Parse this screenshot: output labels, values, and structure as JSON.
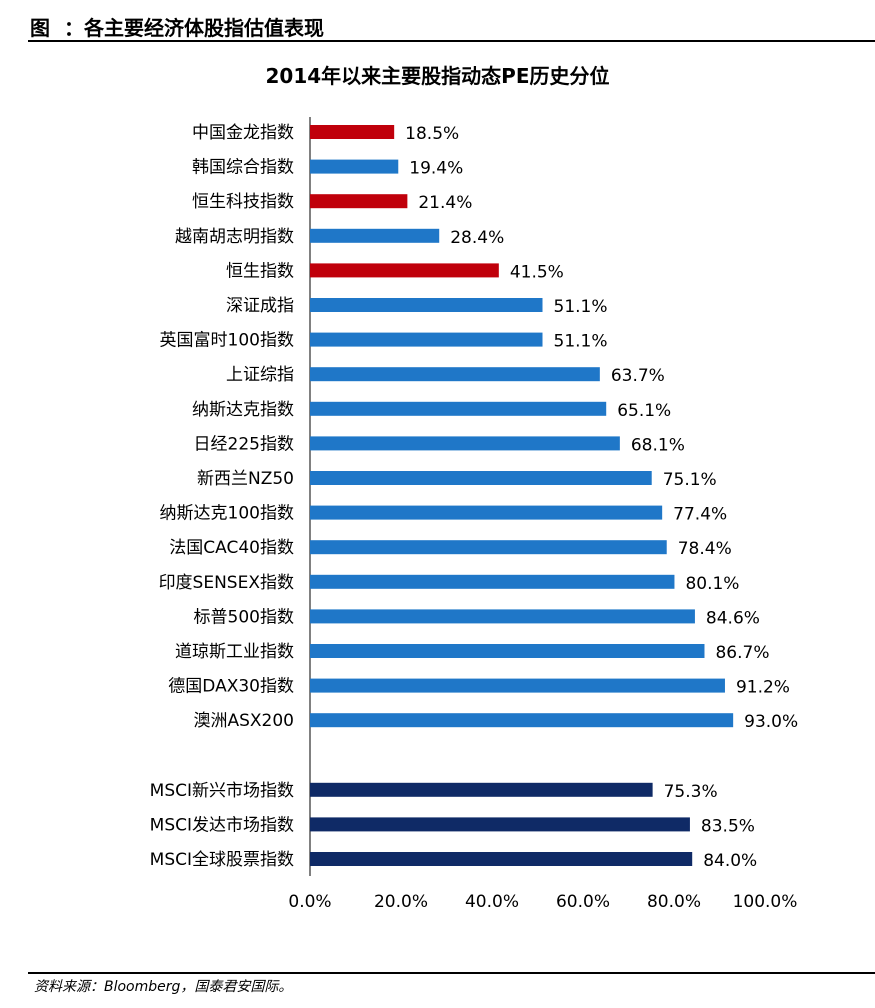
{
  "figure": {
    "label": "图",
    "caption": "：各主要经济体股指估值表现",
    "source": "资料来源：Bloomberg，国泰君安国际。"
  },
  "chart_data": {
    "type": "bar",
    "orientation": "horizontal",
    "title": "2014年以来主要股指动态PE历史分位",
    "xlabel": "",
    "ylabel": "",
    "xlim": [
      0,
      100
    ],
    "x_ticks": [
      "0.0%",
      "20.0%",
      "40.0%",
      "60.0%",
      "80.0%",
      "100.0%"
    ],
    "grid": false,
    "legend": "none",
    "categories": [
      "中国金龙指数",
      "韩国综合指数",
      "恒生科技指数",
      "越南胡志明指数",
      "恒生指数",
      "深证成指",
      "英国富时100指数",
      "上证综指",
      "纳斯达克指数",
      "日经225指数",
      "新西兰NZ50",
      "纳斯达克100指数",
      "法国CAC40指数",
      "印度SENSEX指数",
      "标普500指数",
      "道琼斯工业指数",
      "德国DAX30指数",
      "澳洲ASX200",
      "MSCI新兴市场指数",
      "MSCI发达市场指数",
      "MSCI全球股票指数"
    ],
    "values": [
      18.5,
      19.4,
      21.4,
      28.4,
      41.5,
      51.1,
      51.1,
      63.7,
      65.1,
      68.1,
      75.1,
      77.4,
      78.4,
      80.1,
      84.6,
      86.7,
      91.2,
      93.0,
      75.3,
      83.5,
      84.0
    ],
    "value_labels": [
      "18.5%",
      "19.4%",
      "21.4%",
      "28.4%",
      "41.5%",
      "51.1%",
      "51.1%",
      "63.7%",
      "65.1%",
      "68.1%",
      "75.1%",
      "77.4%",
      "78.4%",
      "80.1%",
      "84.6%",
      "86.7%",
      "91.2%",
      "93.0%",
      "75.3%",
      "83.5%",
      "84.0%"
    ],
    "groups": [
      "index",
      "index",
      "index",
      "index",
      "index",
      "index",
      "index",
      "index",
      "index",
      "index",
      "index",
      "index",
      "index",
      "index",
      "index",
      "index",
      "index",
      "index",
      "msci",
      "msci",
      "msci"
    ],
    "highlight": [
      "中国金龙指数",
      "恒生科技指数",
      "恒生指数"
    ],
    "colors": {
      "default": "#1f77c8",
      "highlight": "#c0000b",
      "msci": "#0f2a66",
      "axis": "#000000"
    }
  }
}
